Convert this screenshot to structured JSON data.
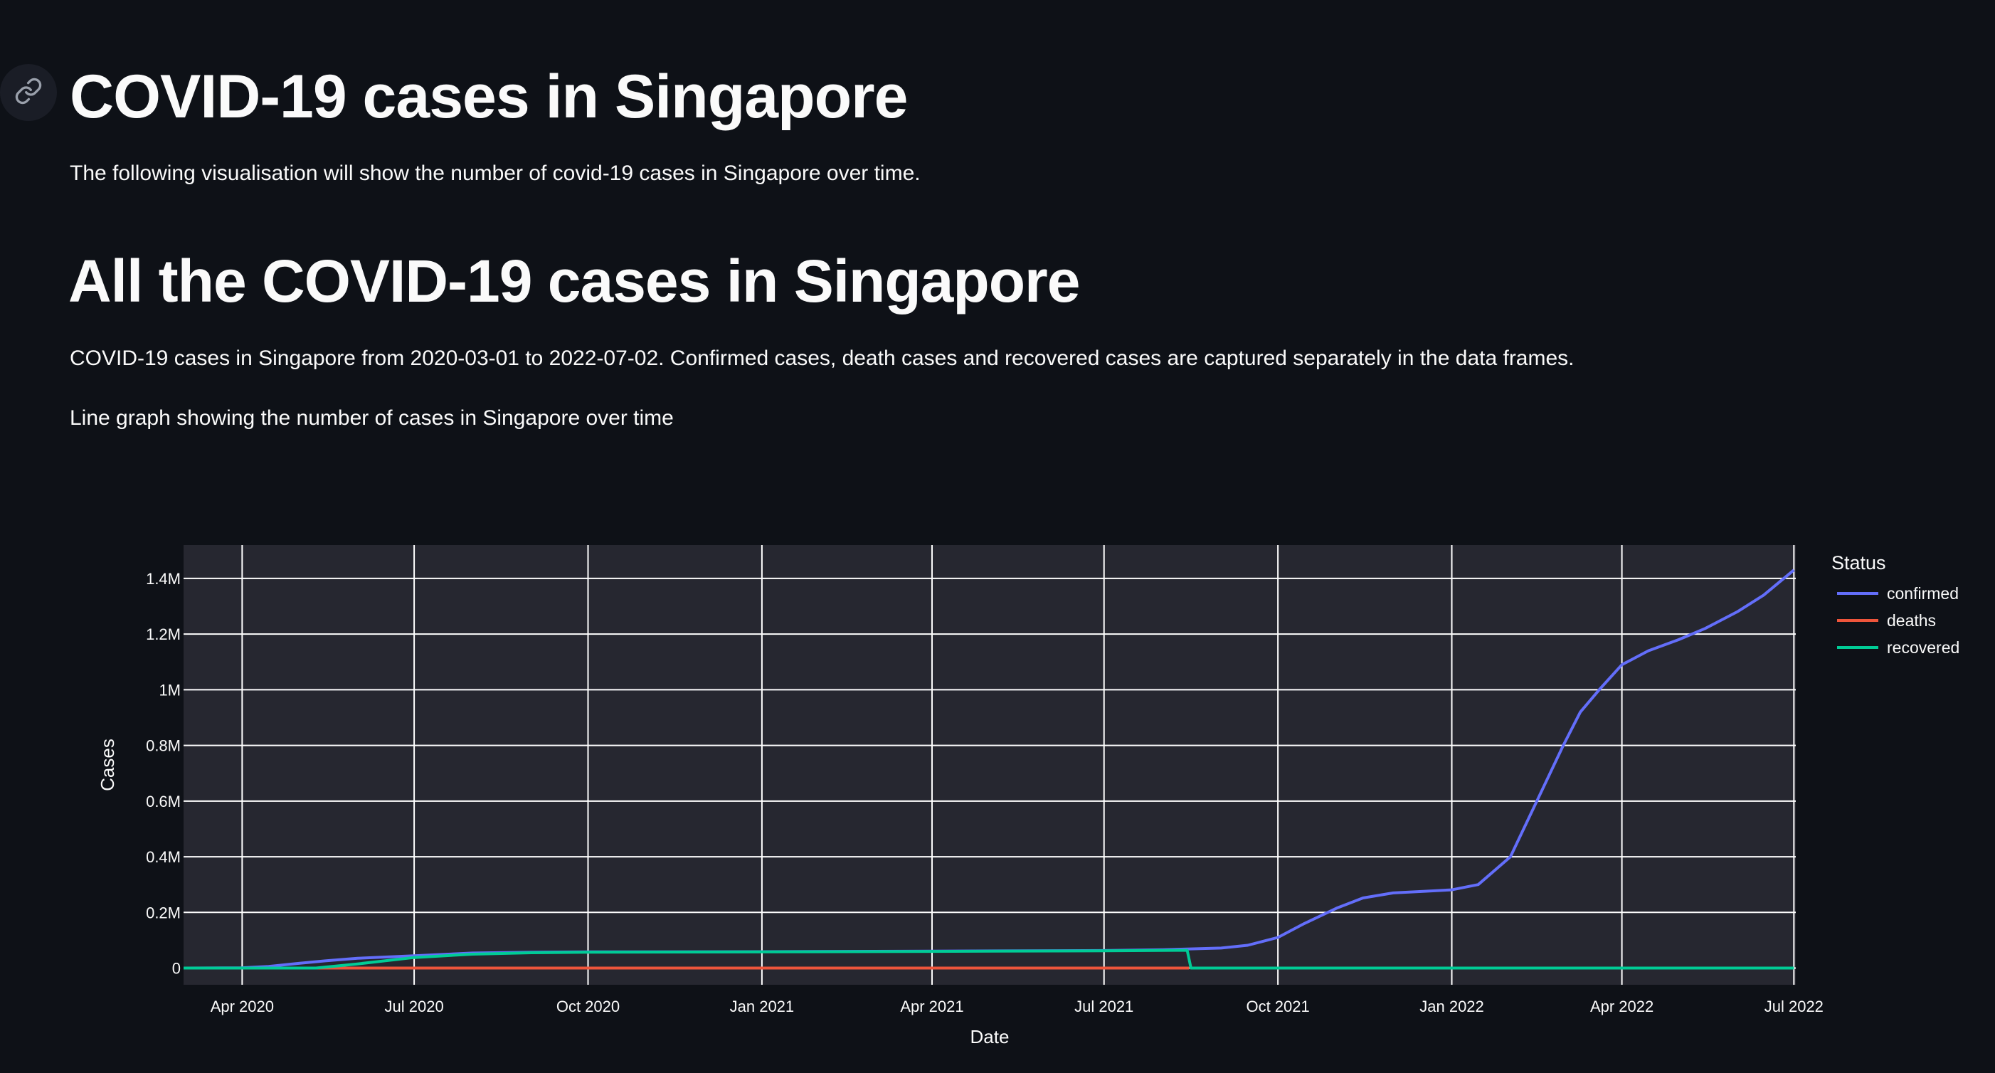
{
  "header": {
    "title": "COVID-19 cases in Singapore",
    "intro": "The following visualisation will show the number of covid-19 cases in Singapore over time."
  },
  "section": {
    "title": "All the COVID-19 cases in Singapore",
    "description": "COVID-19 cases in Singapore from 2020-03-01 to 2022-07-02. Confirmed cases, death cases and recovered cases are captured separately in the data frames.",
    "caption": "Line graph showing the number of cases in Singapore over time"
  },
  "icons": {
    "anchor": "link-icon"
  },
  "colors": {
    "background": "#0e1117",
    "plot_bg": "#262730",
    "confirmed": "#636efa",
    "deaths": "#ef553b",
    "recovered": "#00cc96"
  },
  "chart_data": {
    "type": "line",
    "xlabel": "Date",
    "ylabel": "Cases",
    "legend_title": "Status",
    "legend_position": "right",
    "grid": true,
    "xlim": [
      "2020-03-01",
      "2022-07-02"
    ],
    "ylim": [
      -60000,
      1520000
    ],
    "x_ticks": [
      {
        "date": "2020-04-01",
        "label": "Apr 2020"
      },
      {
        "date": "2020-07-01",
        "label": "Jul 2020"
      },
      {
        "date": "2020-10-01",
        "label": "Oct 2020"
      },
      {
        "date": "2021-01-01",
        "label": "Jan 2021"
      },
      {
        "date": "2021-04-01",
        "label": "Apr 2021"
      },
      {
        "date": "2021-07-01",
        "label": "Jul 2021"
      },
      {
        "date": "2021-10-01",
        "label": "Oct 2021"
      },
      {
        "date": "2022-01-01",
        "label": "Jan 2022"
      },
      {
        "date": "2022-04-01",
        "label": "Apr 2022"
      },
      {
        "date": "2022-07-01",
        "label": "Jul 2022"
      }
    ],
    "y_ticks": [
      {
        "value": 0,
        "label": "0"
      },
      {
        "value": 200000,
        "label": "0.2M"
      },
      {
        "value": 400000,
        "label": "0.4M"
      },
      {
        "value": 600000,
        "label": "0.6M"
      },
      {
        "value": 800000,
        "label": "0.8M"
      },
      {
        "value": 1000000,
        "label": "1M"
      },
      {
        "value": 1200000,
        "label": "1.2M"
      },
      {
        "value": 1400000,
        "label": "1.4M"
      }
    ],
    "series": [
      {
        "name": "confirmed",
        "x": [
          "2020-03-01",
          "2020-04-01",
          "2020-04-15",
          "2020-05-01",
          "2020-05-15",
          "2020-06-01",
          "2020-07-01",
          "2020-08-01",
          "2020-09-01",
          "2020-10-01",
          "2021-01-01",
          "2021-04-01",
          "2021-07-01",
          "2021-08-01",
          "2021-09-01",
          "2021-09-15",
          "2021-10-01",
          "2021-10-15",
          "2021-11-01",
          "2021-11-15",
          "2021-12-01",
          "2021-12-15",
          "2022-01-01",
          "2022-01-15",
          "2022-02-01",
          "2022-02-15",
          "2022-03-01",
          "2022-03-10",
          "2022-03-20",
          "2022-04-01",
          "2022-04-15",
          "2022-05-01",
          "2022-05-15",
          "2022-06-01",
          "2022-06-15",
          "2022-07-01"
        ],
        "y": [
          100,
          1000,
          6000,
          17000,
          26000,
          35000,
          44000,
          54000,
          57000,
          58000,
          59000,
          61000,
          63000,
          66000,
          72000,
          82000,
          110000,
          160000,
          215000,
          252000,
          270000,
          275000,
          281000,
          300000,
          400000,
          600000,
          800000,
          920000,
          1000000,
          1090000,
          1140000,
          1180000,
          1220000,
          1280000,
          1340000,
          1430000
        ]
      },
      {
        "name": "deaths",
        "x": [
          "2020-03-01",
          "2021-08-15"
        ],
        "y": [
          0,
          0
        ]
      },
      {
        "name": "recovered",
        "x": [
          "2020-03-01",
          "2020-05-10",
          "2020-06-01",
          "2020-07-01",
          "2020-08-01",
          "2020-09-01",
          "2020-10-01",
          "2021-01-01",
          "2021-04-01",
          "2021-07-01",
          "2021-08-14",
          "2021-08-16",
          "2022-07-01"
        ],
        "y": [
          0,
          0,
          15000,
          38000,
          50000,
          55000,
          57000,
          58000,
          60000,
          62000,
          64000,
          0,
          0
        ]
      }
    ]
  }
}
